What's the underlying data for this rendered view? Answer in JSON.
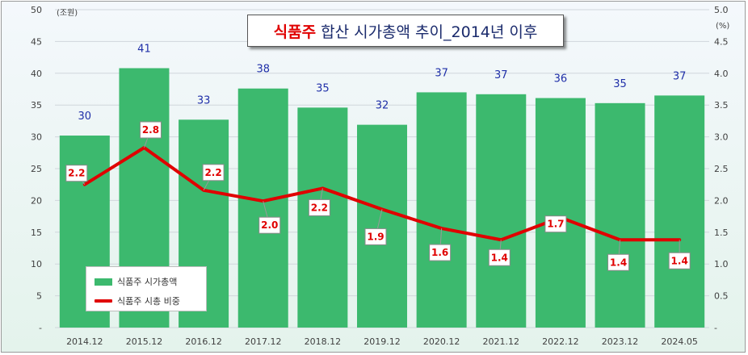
{
  "title": {
    "highlight": "식품주",
    "rest": "합산 시가총액 추이_2014년 이후"
  },
  "colors": {
    "bar": "#3cb96e",
    "line": "#e00000",
    "bar_label": "#1f2fa8"
  },
  "chart_data": {
    "type": "bar",
    "categories": [
      "2014.12",
      "2015.12",
      "2016.12",
      "2017.12",
      "2018.12",
      "2019.12",
      "2020.12",
      "2021.12",
      "2022.12",
      "2023.12",
      "2024.05"
    ],
    "series": [
      {
        "name": "식품주 시가총액",
        "type": "bar",
        "axis": "left",
        "values": [
          30.2,
          40.8,
          32.7,
          37.6,
          34.6,
          31.9,
          37.0,
          36.7,
          36.1,
          35.3,
          36.5
        ],
        "labels": [
          "30",
          "41",
          "33",
          "38",
          "35",
          "32",
          "37",
          "37",
          "36",
          "35",
          "37"
        ]
      },
      {
        "name": "식품주 시총 비중",
        "type": "line",
        "axis": "right",
        "values": [
          2.25,
          2.83,
          2.16,
          1.99,
          2.19,
          1.86,
          1.56,
          1.38,
          1.73,
          1.38,
          1.38
        ],
        "labels": [
          "2.2",
          "2.8",
          "2.2",
          "2.0",
          "2.2",
          "1.9",
          "1.6",
          "1.4",
          "1.7",
          "1.4",
          "1.4"
        ]
      }
    ],
    "left_axis": {
      "unit": "(조원)",
      "ylim": [
        0,
        50
      ],
      "ticks": [
        "-",
        "5",
        "10",
        "15",
        "20",
        "25",
        "30",
        "35",
        "40",
        "45",
        "50"
      ]
    },
    "right_axis": {
      "unit": "(%)",
      "ylim": [
        0,
        5.0
      ],
      "ticks": [
        "-",
        "0.5",
        "1.0",
        "1.5",
        "2.0",
        "2.5",
        "3.0",
        "3.5",
        "4.0",
        "4.5",
        "5.0"
      ]
    },
    "grid": true,
    "legend": "bottom-left"
  }
}
